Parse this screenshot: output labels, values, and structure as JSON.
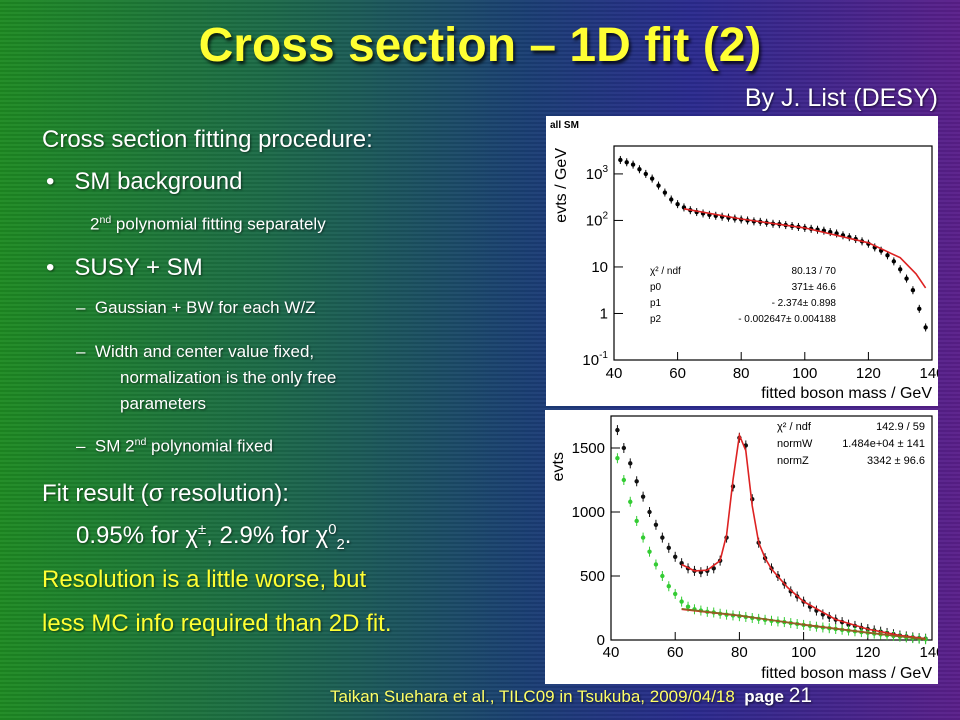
{
  "slide": {
    "title": "Cross section – 1D fit (2)",
    "byline": "By J. List (DESY)",
    "footer": {
      "text": "Taikan Suehara et al., TILC09 in Tsukuba, 2009/04/18",
      "page_label": "page",
      "page_number": "21"
    }
  },
  "body": {
    "heading": "Cross section fitting procedure:",
    "bullet1": "SM background",
    "b1_sub_a": "2",
    "b1_sub_sup": "nd",
    "b1_sub_b": " polynomial fitting separately",
    "bullet2": "SUSY + SM",
    "dash1": "Gaussian + BW for each W/Z",
    "dash2_l1": "Width and center value fixed,",
    "dash2_l2": "normalization is the only free",
    "dash2_l3": "parameters",
    "dash3_a": "SM 2",
    "dash3_sup": "nd",
    "dash3_b": " polynomial fixed",
    "fit_a": "Fit result (",
    "fit_sigma": "σ",
    "fit_b": " resolution):",
    "res_a": "0.95% for ",
    "res_chi1": "χ",
    "res_pm": "±",
    "res_b": ", 2.9% for ",
    "res_chi2": "χ",
    "res_sup0": "0",
    "res_sub2": "2",
    "res_c": ".",
    "conc1": "Resolution is a little worse, but",
    "conc2": "less MC info required than 2D fit."
  },
  "chart_data": [
    {
      "type": "scatter",
      "corner_label": "all SM",
      "xlabel": "fitted boson mass / GeV",
      "ylabel": "evts / GeV",
      "xlim": [
        40,
        140
      ],
      "yscale": "log",
      "ylim_exp": [
        -1,
        3.6
      ],
      "xticks": [
        40,
        60,
        80,
        100,
        120,
        140
      ],
      "yticks": [
        {
          "base": "10",
          "exp": "-1",
          "value": -1
        },
        {
          "base": "1",
          "exp": "",
          "value": 0
        },
        {
          "base": "10",
          "exp": "",
          "value": 1
        },
        {
          "base": "10",
          "exp": "2",
          "value": 2
        },
        {
          "base": "10",
          "exp": "3",
          "value": 3
        }
      ],
      "stats": [
        {
          "label": "χ² / ndf",
          "value": "80.13 / 70"
        },
        {
          "label": "p0",
          "value": "371± 46.6"
        },
        {
          "label": "p1",
          "value": "- 2.374± 0.898"
        },
        {
          "label": "p2",
          "value": "- 0.002647± 0.004188"
        }
      ],
      "points_log10": [
        [
          42,
          3.3
        ],
        [
          44,
          3.25
        ],
        [
          46,
          3.2
        ],
        [
          48,
          3.1
        ],
        [
          50,
          3.0
        ],
        [
          52,
          2.9
        ],
        [
          54,
          2.75
        ],
        [
          56,
          2.6
        ],
        [
          58,
          2.45
        ],
        [
          60,
          2.35
        ],
        [
          62,
          2.28
        ],
        [
          64,
          2.22
        ],
        [
          66,
          2.18
        ],
        [
          68,
          2.15
        ],
        [
          70,
          2.12
        ],
        [
          72,
          2.1
        ],
        [
          74,
          2.08
        ],
        [
          76,
          2.06
        ],
        [
          78,
          2.04
        ],
        [
          80,
          2.02
        ],
        [
          82,
          2.0
        ],
        [
          84,
          1.98
        ],
        [
          86,
          1.97
        ],
        [
          88,
          1.95
        ],
        [
          90,
          1.93
        ],
        [
          92,
          1.92
        ],
        [
          94,
          1.9
        ],
        [
          96,
          1.88
        ],
        [
          98,
          1.86
        ],
        [
          100,
          1.84
        ],
        [
          102,
          1.82
        ],
        [
          104,
          1.8
        ],
        [
          106,
          1.78
        ],
        [
          108,
          1.75
        ],
        [
          110,
          1.72
        ],
        [
          112,
          1.68
        ],
        [
          114,
          1.64
        ],
        [
          116,
          1.6
        ],
        [
          118,
          1.55
        ],
        [
          120,
          1.5
        ],
        [
          122,
          1.42
        ],
        [
          124,
          1.35
        ],
        [
          126,
          1.25
        ],
        [
          128,
          1.12
        ],
        [
          130,
          0.95
        ],
        [
          132,
          0.75
        ],
        [
          134,
          0.5
        ],
        [
          136,
          0.1
        ],
        [
          138,
          -0.3
        ]
      ],
      "fit_log10": [
        [
          62,
          2.25
        ],
        [
          80,
          2.03
        ],
        [
          100,
          1.84
        ],
        [
          120,
          1.52
        ],
        [
          130,
          1.2
        ],
        [
          135,
          0.85
        ],
        [
          138,
          0.55
        ]
      ]
    },
    {
      "type": "scatter",
      "xlabel": "fitted boson mass / GeV",
      "ylabel": "evts",
      "xlim": [
        40,
        140
      ],
      "ylim": [
        0,
        1750
      ],
      "xticks": [
        40,
        60,
        80,
        100,
        120,
        140
      ],
      "yticks": [
        0,
        500,
        1000,
        1500
      ],
      "stats": [
        {
          "label": "χ² / ndf",
          "value": "142.9 / 59"
        },
        {
          "label": "normW",
          "value": "1.484e+04 ± 141"
        },
        {
          "label": "normZ",
          "value": "3342 ± 96.6"
        }
      ],
      "series": [
        {
          "color": "#111111",
          "points": [
            [
              42,
              1640
            ],
            [
              44,
              1500
            ],
            [
              46,
              1380
            ],
            [
              48,
              1240
            ],
            [
              50,
              1120
            ],
            [
              52,
              1000
            ],
            [
              54,
              900
            ],
            [
              56,
              800
            ],
            [
              58,
              720
            ],
            [
              60,
              650
            ],
            [
              62,
              600
            ],
            [
              64,
              560
            ],
            [
              66,
              540
            ],
            [
              68,
              530
            ],
            [
              70,
              540
            ],
            [
              72,
              560
            ],
            [
              74,
              620
            ],
            [
              76,
              800
            ],
            [
              78,
              1200
            ],
            [
              80,
              1580
            ],
            [
              82,
              1520
            ],
            [
              84,
              1100
            ],
            [
              86,
              760
            ],
            [
              88,
              640
            ],
            [
              90,
              560
            ],
            [
              92,
              500
            ],
            [
              94,
              440
            ],
            [
              96,
              380
            ],
            [
              98,
              340
            ],
            [
              100,
              300
            ],
            [
              102,
              260
            ],
            [
              104,
              230
            ],
            [
              106,
              200
            ],
            [
              108,
              180
            ],
            [
              110,
              160
            ],
            [
              112,
              140
            ],
            [
              114,
              120
            ],
            [
              116,
              110
            ],
            [
              118,
              95
            ],
            [
              120,
              85
            ],
            [
              122,
              75
            ],
            [
              124,
              65
            ],
            [
              126,
              55
            ],
            [
              128,
              45
            ],
            [
              130,
              35
            ],
            [
              132,
              28
            ],
            [
              134,
              20
            ],
            [
              136,
              14
            ],
            [
              138,
              10
            ]
          ]
        },
        {
          "color": "#33cc33",
          "points": [
            [
              42,
              1420
            ],
            [
              44,
              1250
            ],
            [
              46,
              1080
            ],
            [
              48,
              930
            ],
            [
              50,
              800
            ],
            [
              52,
              690
            ],
            [
              54,
              590
            ],
            [
              56,
              500
            ],
            [
              58,
              420
            ],
            [
              60,
              360
            ],
            [
              62,
              300
            ],
            [
              64,
              260
            ],
            [
              66,
              240
            ],
            [
              68,
              230
            ],
            [
              70,
              220
            ],
            [
              72,
              215
            ],
            [
              74,
              205
            ],
            [
              76,
              198
            ],
            [
              78,
              192
            ],
            [
              80,
              186
            ],
            [
              82,
              180
            ],
            [
              84,
              172
            ],
            [
              86,
              165
            ],
            [
              88,
              158
            ],
            [
              90,
              150
            ],
            [
              92,
              145
            ],
            [
              94,
              140
            ],
            [
              96,
              132
            ],
            [
              98,
              125
            ],
            [
              100,
              118
            ],
            [
              102,
              110
            ],
            [
              104,
              104
            ],
            [
              106,
              98
            ],
            [
              108,
              92
            ],
            [
              110,
              86
            ],
            [
              112,
              80
            ],
            [
              114,
              74
            ],
            [
              116,
              68
            ],
            [
              118,
              62
            ],
            [
              120,
              56
            ],
            [
              122,
              50
            ],
            [
              124,
              44
            ],
            [
              126,
              38
            ],
            [
              128,
              32
            ],
            [
              130,
              26
            ],
            [
              132,
              20
            ],
            [
              134,
              15
            ],
            [
              136,
              10
            ],
            [
              138,
              6
            ]
          ]
        }
      ],
      "fit_lines": [
        {
          "color": "#dd2222",
          "points": [
            [
              62,
              590
            ],
            [
              66,
              540
            ],
            [
              70,
              545
            ],
            [
              74,
              620
            ],
            [
              76,
              820
            ],
            [
              78,
              1250
            ],
            [
              80,
              1600
            ],
            [
              82,
              1480
            ],
            [
              84,
              1050
            ],
            [
              86,
              760
            ],
            [
              88,
              640
            ],
            [
              90,
              555
            ],
            [
              95,
              410
            ],
            [
              100,
              300
            ],
            [
              110,
              160
            ],
            [
              120,
              85
            ],
            [
              130,
              36
            ],
            [
              138,
              10
            ]
          ]
        },
        {
          "color": "#dd2222",
          "points": [
            [
              62,
              240
            ],
            [
              80,
              190
            ],
            [
              100,
              120
            ],
            [
              120,
              58
            ],
            [
              138,
              6
            ]
          ]
        },
        {
          "color": "#886622",
          "points": [
            [
              62,
              244
            ],
            [
              80,
              192
            ],
            [
              100,
              118
            ],
            [
              120,
              56
            ],
            [
              138,
              5
            ]
          ]
        }
      ]
    }
  ]
}
